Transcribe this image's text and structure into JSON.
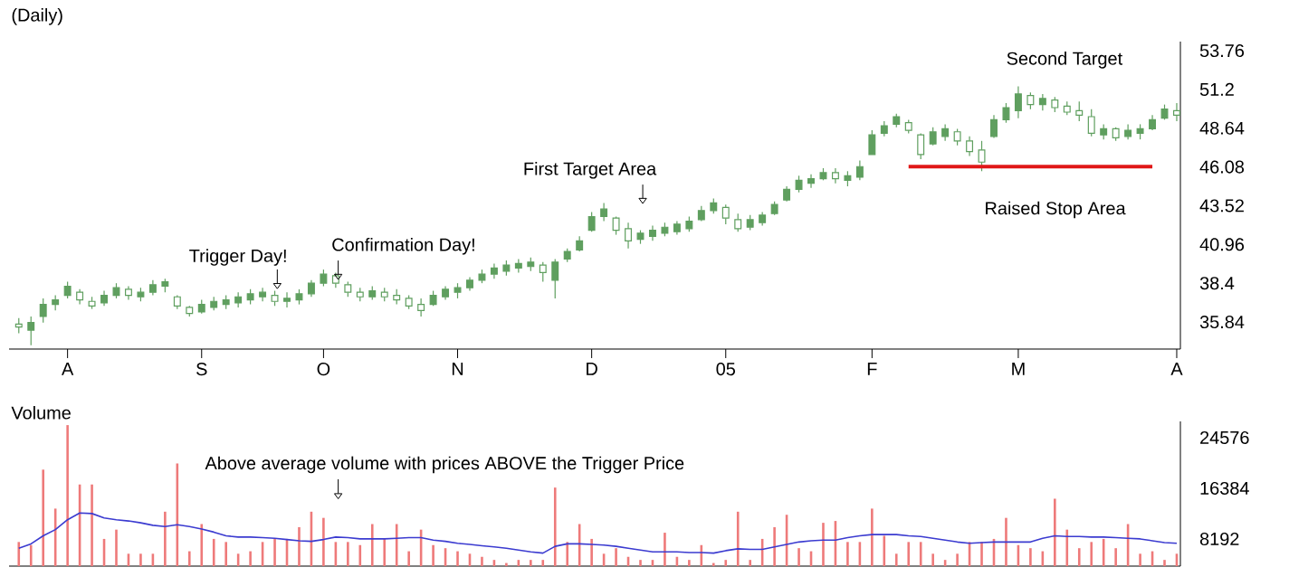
{
  "chart_data": [
    {
      "type": "candlestick",
      "title": "(Daily)",
      "color": "#5f9f5f",
      "categories": [
        null,
        null,
        null,
        null,
        "A",
        null,
        null,
        null,
        null,
        null,
        null,
        null,
        null,
        null,
        null,
        "S",
        null,
        null,
        null,
        null,
        null,
        null,
        null,
        null,
        null,
        "O",
        null,
        null,
        null,
        null,
        null,
        null,
        null,
        null,
        null,
        null,
        "N",
        null,
        null,
        null,
        null,
        null,
        null,
        null,
        null,
        null,
        null,
        "D",
        null,
        null,
        null,
        null,
        null,
        null,
        null,
        null,
        null,
        null,
        "05",
        null,
        null,
        null,
        null,
        null,
        null,
        null,
        null,
        null,
        null,
        null,
        "F",
        null,
        null,
        null,
        null,
        null,
        null,
        null,
        null,
        null,
        null,
        null,
        "M",
        null,
        null,
        null,
        null,
        null,
        null,
        null,
        null,
        null,
        null,
        null,
        null,
        "A"
      ],
      "ohlc": [
        [
          35.7,
          36.1,
          35.1,
          35.5
        ],
        [
          35.3,
          36.2,
          34.3,
          35.8
        ],
        [
          36.2,
          37.4,
          35.8,
          37.0
        ],
        [
          37.0,
          37.6,
          36.6,
          37.3
        ],
        [
          37.6,
          38.5,
          37.4,
          38.2
        ],
        [
          37.8,
          38.0,
          37.0,
          37.3
        ],
        [
          37.2,
          37.5,
          36.7,
          36.9
        ],
        [
          37.1,
          37.9,
          36.9,
          37.6
        ],
        [
          37.6,
          38.4,
          37.4,
          38.1
        ],
        [
          38.0,
          38.2,
          37.3,
          37.6
        ],
        [
          37.5,
          38.1,
          37.2,
          37.8
        ],
        [
          37.8,
          38.6,
          37.6,
          38.3
        ],
        [
          38.2,
          38.7,
          37.8,
          38.5
        ],
        [
          37.5,
          37.6,
          36.7,
          36.9
        ],
        [
          36.8,
          36.9,
          36.2,
          36.4
        ],
        [
          36.5,
          37.3,
          36.4,
          37.0
        ],
        [
          36.8,
          37.5,
          36.6,
          37.2
        ],
        [
          37.0,
          37.6,
          36.7,
          37.3
        ],
        [
          37.1,
          37.8,
          36.8,
          37.5
        ],
        [
          37.3,
          38.0,
          37.0,
          37.7
        ],
        [
          37.5,
          38.1,
          37.2,
          37.8
        ],
        [
          37.6,
          37.9,
          36.9,
          37.2
        ],
        [
          37.2,
          37.8,
          36.8,
          37.4
        ],
        [
          37.3,
          38.0,
          37.0,
          37.7
        ],
        [
          37.7,
          38.6,
          37.5,
          38.4
        ],
        [
          38.4,
          39.3,
          38.2,
          39.0
        ],
        [
          38.9,
          39.1,
          38.1,
          38.4
        ],
        [
          38.3,
          38.5,
          37.5,
          37.8
        ],
        [
          37.8,
          38.1,
          37.2,
          37.5
        ],
        [
          37.5,
          38.2,
          37.3,
          37.9
        ],
        [
          37.8,
          38.1,
          37.2,
          37.5
        ],
        [
          37.6,
          38.0,
          37.0,
          37.3
        ],
        [
          37.4,
          37.6,
          36.7,
          36.9
        ],
        [
          37.0,
          37.4,
          36.2,
          36.6
        ],
        [
          37.0,
          37.9,
          36.9,
          37.6
        ],
        [
          37.5,
          38.2,
          37.3,
          38.0
        ],
        [
          37.8,
          38.4,
          37.4,
          38.1
        ],
        [
          38.1,
          38.8,
          37.9,
          38.6
        ],
        [
          38.6,
          39.3,
          38.4,
          39.0
        ],
        [
          39.0,
          39.7,
          38.7,
          39.4
        ],
        [
          39.2,
          39.9,
          38.9,
          39.6
        ],
        [
          39.4,
          40.0,
          39.1,
          39.7
        ],
        [
          39.5,
          40.1,
          39.2,
          39.8
        ],
        [
          39.6,
          39.8,
          38.5,
          39.1
        ],
        [
          38.6,
          40.0,
          37.4,
          39.8
        ],
        [
          40.0,
          40.7,
          39.8,
          40.5
        ],
        [
          40.6,
          41.5,
          40.5,
          41.2
        ],
        [
          41.9,
          43.1,
          41.8,
          42.8
        ],
        [
          42.8,
          43.7,
          42.5,
          43.3
        ],
        [
          42.7,
          42.8,
          41.6,
          41.9
        ],
        [
          42.0,
          42.4,
          40.7,
          41.2
        ],
        [
          41.3,
          41.9,
          41.0,
          41.7
        ],
        [
          41.5,
          42.2,
          41.2,
          41.9
        ],
        [
          41.7,
          42.4,
          41.5,
          42.1
        ],
        [
          41.8,
          42.5,
          41.6,
          42.3
        ],
        [
          42.0,
          42.8,
          41.8,
          42.5
        ],
        [
          42.6,
          43.5,
          42.5,
          43.2
        ],
        [
          43.2,
          44.0,
          43.0,
          43.7
        ],
        [
          43.4,
          43.6,
          42.3,
          42.7
        ],
        [
          42.6,
          43.0,
          41.8,
          42.0
        ],
        [
          42.1,
          42.9,
          41.9,
          42.6
        ],
        [
          42.4,
          43.1,
          42.2,
          42.9
        ],
        [
          43.0,
          43.8,
          42.9,
          43.6
        ],
        [
          43.9,
          44.8,
          43.8,
          44.6
        ],
        [
          44.6,
          45.5,
          44.4,
          45.2
        ],
        [
          45.0,
          45.6,
          44.7,
          45.3
        ],
        [
          45.3,
          46.0,
          45.2,
          45.7
        ],
        [
          45.7,
          46.0,
          45.0,
          45.3
        ],
        [
          45.2,
          45.8,
          44.8,
          45.5
        ],
        [
          45.4,
          46.5,
          45.2,
          46.1
        ],
        [
          46.9,
          48.5,
          46.9,
          48.2
        ],
        [
          48.3,
          49.1,
          48.1,
          48.8
        ],
        [
          48.9,
          49.6,
          48.7,
          49.4
        ],
        [
          49.0,
          49.2,
          48.3,
          48.5
        ],
        [
          48.2,
          48.3,
          46.6,
          46.9
        ],
        [
          47.6,
          48.7,
          47.5,
          48.4
        ],
        [
          48.1,
          48.9,
          47.8,
          48.6
        ],
        [
          48.4,
          48.6,
          47.5,
          47.8
        ],
        [
          47.8,
          48.1,
          46.8,
          47.1
        ],
        [
          47.2,
          47.8,
          45.8,
          46.4
        ],
        [
          48.1,
          49.5,
          48.0,
          49.2
        ],
        [
          49.2,
          50.3,
          49.0,
          50.0
        ],
        [
          49.8,
          51.4,
          49.3,
          50.9
        ],
        [
          50.8,
          51.0,
          49.9,
          50.2
        ],
        [
          50.2,
          50.9,
          49.8,
          50.6
        ],
        [
          50.5,
          50.7,
          49.7,
          50.0
        ],
        [
          50.1,
          50.4,
          49.5,
          49.7
        ],
        [
          49.8,
          50.4,
          49.1,
          49.5
        ],
        [
          49.4,
          49.9,
          48.1,
          48.3
        ],
        [
          48.2,
          48.9,
          47.9,
          48.6
        ],
        [
          48.6,
          48.7,
          47.8,
          48.0
        ],
        [
          48.1,
          48.9,
          47.9,
          48.5
        ],
        [
          48.3,
          48.9,
          47.9,
          48.6
        ],
        [
          48.6,
          49.5,
          48.5,
          49.2
        ],
        [
          49.3,
          50.2,
          49.2,
          49.9
        ],
        [
          49.8,
          50.3,
          49.1,
          49.5
        ]
      ],
      "series": [
        {
          "type": "line",
          "color": "#e01818",
          "values": [
            null,
            null,
            null,
            null,
            null,
            null,
            null,
            null,
            null,
            null,
            null,
            null,
            null,
            null,
            null,
            null,
            null,
            null,
            null,
            null,
            null,
            null,
            null,
            null,
            null,
            null,
            null,
            null,
            null,
            null,
            null,
            null,
            null,
            null,
            null,
            null,
            null,
            null,
            null,
            null,
            null,
            null,
            null,
            null,
            null,
            null,
            null,
            null,
            null,
            null,
            null,
            null,
            null,
            null,
            null,
            null,
            null,
            null,
            null,
            null,
            null,
            null,
            null,
            null,
            null,
            null,
            null,
            null,
            null,
            null,
            null,
            null,
            null,
            46.1,
            46.1,
            46.1,
            46.1,
            46.1,
            46.1,
            46.1,
            46.1,
            46.1,
            46.1,
            46.1,
            46.1,
            46.1,
            46.1,
            46.1,
            46.1,
            46.1,
            46.1,
            46.1,
            46.1,
            46.1,
            null,
            null
          ]
        }
      ],
      "ylim": [
        34.05,
        54.36
      ],
      "yticks": [
        35.84,
        38.4,
        40.96,
        43.52,
        46.08,
        48.64,
        51.2,
        53.76
      ],
      "annotations": [
        "Trigger Day!",
        "Confirmation Day!",
        "First Target Area",
        "Second Target",
        "Raised Stop Area"
      ]
    },
    {
      "type": "bar",
      "ylabel": "Volume",
      "tick_labels": "y",
      "categories": [
        null,
        null,
        null,
        null,
        null,
        null,
        null,
        null,
        null,
        null,
        null,
        null,
        null,
        null,
        null,
        null,
        null,
        null,
        null,
        null,
        null,
        null,
        null,
        null,
        null,
        null,
        null,
        null,
        null,
        null,
        null,
        null,
        null,
        null,
        null,
        null,
        null,
        null,
        null,
        null,
        null,
        null,
        null,
        null,
        null,
        null,
        null,
        null,
        null,
        null,
        null,
        null,
        null,
        null,
        null,
        null,
        null,
        null,
        null,
        null,
        null,
        null,
        null,
        null,
        null,
        null,
        null,
        null,
        null,
        null,
        null,
        null,
        null,
        null,
        null,
        null,
        null,
        null,
        null,
        null,
        null,
        null,
        null,
        null,
        null,
        null,
        null,
        null,
        null,
        null,
        null,
        null,
        null,
        null,
        null,
        null
      ],
      "series": [
        {
          "type": "bar",
          "color": "#ee7a7a",
          "values": [
            7700,
            7200,
            19400,
            13100,
            26600,
            17000,
            17000,
            8200,
            9700,
            5800,
            5800,
            5800,
            12600,
            20400,
            6200,
            10600,
            8200,
            7700,
            5800,
            6200,
            7700,
            8200,
            8200,
            10100,
            12600,
            11600,
            7700,
            7700,
            7200,
            10600,
            8200,
            10600,
            6200,
            9700,
            7200,
            6700,
            6200,
            5800,
            5300,
            4800,
            4300,
            4800,
            4800,
            4800,
            16500,
            7700,
            10600,
            8200,
            5800,
            6700,
            5300,
            4800,
            4800,
            9200,
            5300,
            4800,
            7200,
            4300,
            4800,
            12600,
            4800,
            8200,
            10100,
            12100,
            6700,
            6200,
            10800,
            11100,
            7700,
            7700,
            13100,
            8700,
            5800,
            7700,
            7700,
            5800,
            4800,
            5800,
            7700,
            7700,
            8200,
            11600,
            7200,
            6700,
            6200,
            14700,
            9700,
            6700,
            7700,
            8200,
            6700,
            10600,
            5800,
            6200,
            4800,
            5800
          ]
        },
        {
          "type": "line",
          "color": "#3b3bd0",
          "values": [
            6700,
            7400,
            8700,
            9700,
            11300,
            12400,
            12300,
            11600,
            11300,
            11100,
            10800,
            10400,
            10200,
            10500,
            10200,
            9800,
            9300,
            8700,
            8500,
            8500,
            8400,
            8300,
            8100,
            7900,
            7800,
            8100,
            8500,
            8400,
            8200,
            8200,
            8200,
            8300,
            8400,
            8400,
            8000,
            7800,
            7500,
            7300,
            7100,
            6900,
            6700,
            6400,
            6100,
            5900,
            7000,
            7400,
            7400,
            7300,
            7200,
            7000,
            6700,
            6400,
            6100,
            6100,
            6100,
            6000,
            6000,
            5900,
            6300,
            6600,
            6500,
            6500,
            6900,
            7300,
            7700,
            7900,
            8000,
            8000,
            8400,
            8700,
            8900,
            8900,
            8900,
            8700,
            8600,
            8300,
            8000,
            7700,
            7500,
            7600,
            7700,
            7700,
            7700,
            7700,
            8300,
            8700,
            8600,
            8600,
            8500,
            8500,
            8400,
            8300,
            8200,
            7900,
            7600,
            7500
          ]
        }
      ],
      "ylim": [
        3800,
        27200
      ],
      "yticks": [
        8192,
        16384,
        24576
      ],
      "annotations": [
        "Above average volume with prices ABOVE the Trigger Price"
      ]
    }
  ]
}
